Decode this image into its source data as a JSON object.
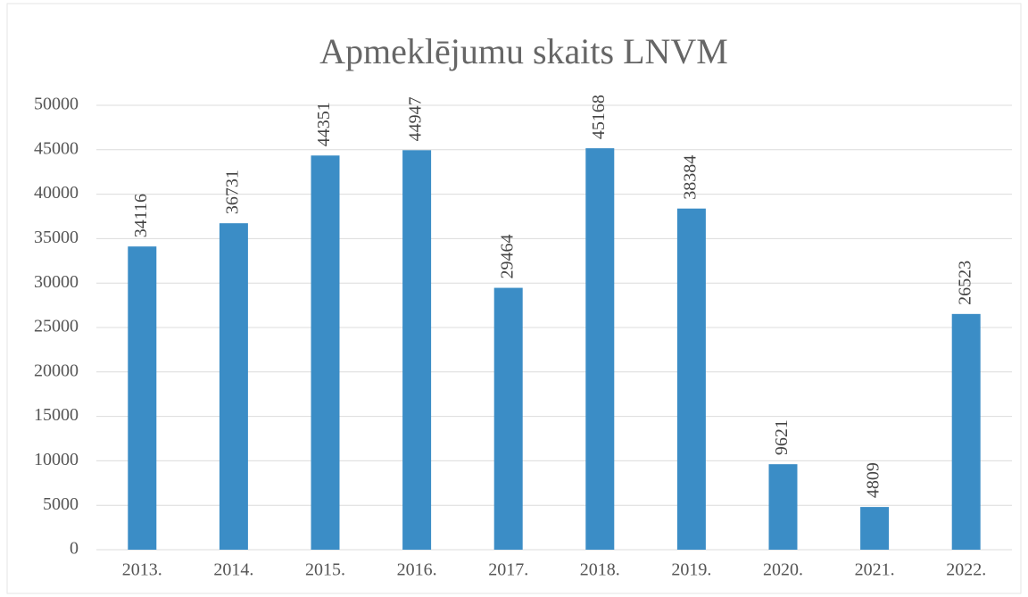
{
  "chart_data": {
    "type": "bar",
    "title": "Apmeklējumu skaits LNVM",
    "categories": [
      "2013.",
      "2014.",
      "2015.",
      "2016.",
      "2017.",
      "2018.",
      "2019.",
      "2020.",
      "2021.",
      "2022."
    ],
    "values": [
      34116,
      36731,
      44351,
      44947,
      29464,
      45168,
      38384,
      9621,
      4809,
      26523
    ],
    "color": "#3b8dc6",
    "ylim": [
      0,
      50000
    ],
    "yticks": [
      0,
      5000,
      10000,
      15000,
      20000,
      25000,
      30000,
      35000,
      40000,
      45000,
      50000
    ],
    "grid": true
  }
}
